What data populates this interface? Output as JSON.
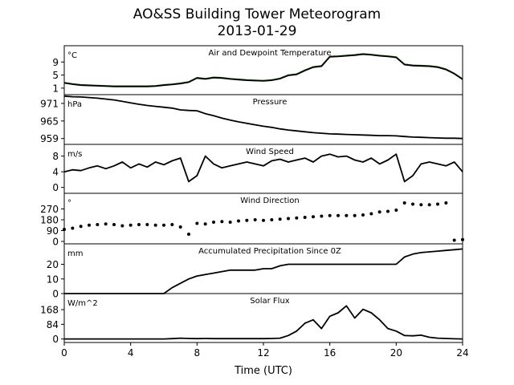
{
  "title": "AO&SS Building Tower Meteorogram",
  "subtitle": "2013-01-29",
  "chart_data": {
    "type": "line",
    "xlabel": "Time (UTC)",
    "xlim": [
      0,
      24
    ],
    "xticks": [
      "0",
      "4",
      "8",
      "12",
      "16",
      "20",
      "24"
    ],
    "x": [
      0,
      0.5,
      1,
      1.5,
      2,
      2.5,
      3,
      3.5,
      4,
      4.5,
      5,
      5.5,
      6,
      6.5,
      7,
      7.5,
      8,
      8.5,
      9,
      9.5,
      10,
      10.5,
      11,
      11.5,
      12,
      12.5,
      13,
      13.5,
      14,
      14.5,
      15,
      15.5,
      16,
      16.5,
      17,
      17.5,
      18,
      18.5,
      19,
      19.5,
      20,
      20.5,
      21,
      21.5,
      22,
      22.5,
      23,
      23.5,
      24
    ],
    "panels": [
      {
        "id": "temperature",
        "title": "Air and Dewpoint Temperature",
        "unit": "°C",
        "ylim": [
          -1,
          14
        ],
        "yticks": [
          "1",
          "5",
          "9"
        ],
        "color": "#1a7a00",
        "series": [
          {
            "style": "line",
            "color": "#1a7a00",
            "values": [
              2.7,
              2.3,
              2.0,
              1.9,
              1.8,
              1.7,
              1.6,
              1.6,
              1.6,
              1.6,
              1.6,
              1.7,
              2.0,
              2.2,
              2.5,
              2.9,
              4.2,
              3.9,
              4.3,
              4.2,
              3.9,
              3.7,
              3.5,
              3.4,
              3.3,
              3.5,
              4.0,
              5.0,
              5.3,
              6.5,
              7.5,
              7.8,
              10.7,
              10.8,
              11.0,
              11.2,
              11.5,
              11.3,
              11.0,
              10.8,
              10.5,
              8.3,
              8.0,
              7.9,
              7.8,
              7.5,
              6.8,
              5.5,
              3.8
            ]
          },
          {
            "style": "line",
            "color": "#000000",
            "values": [
              2.6,
              2.2,
              1.9,
              1.8,
              1.7,
              1.6,
              1.5,
              1.5,
              1.5,
              1.5,
              1.5,
              1.6,
              1.9,
              2.1,
              2.4,
              2.8,
              4.1,
              3.8,
              4.2,
              4.1,
              3.8,
              3.6,
              3.4,
              3.3,
              3.2,
              3.4,
              3.9,
              4.9,
              5.2,
              6.4,
              7.4,
              7.7,
              10.6,
              10.7,
              10.9,
              11.1,
              11.4,
              11.2,
              10.9,
              10.7,
              10.4,
              8.2,
              7.9,
              7.8,
              7.7,
              7.4,
              6.7,
              5.4,
              3.7
            ]
          }
        ]
      },
      {
        "id": "pressure",
        "title": "Pressure",
        "unit": "hPa",
        "ylim": [
          957,
          974
        ],
        "yticks": [
          "959",
          "965",
          "971"
        ],
        "series": [
          {
            "style": "line",
            "color": "#000000",
            "values": [
              973.5,
              973.3,
              973.2,
              973.0,
              972.8,
              972.5,
              972.2,
              971.7,
              971.2,
              970.7,
              970.3,
              970.0,
              969.7,
              969.4,
              968.8,
              968.6,
              968.5,
              967.5,
              966.8,
              966.0,
              965.3,
              964.7,
              964.2,
              963.7,
              963.2,
              962.8,
              962.3,
              961.9,
              961.6,
              961.3,
              961.0,
              960.8,
              960.6,
              960.5,
              960.4,
              960.3,
              960.2,
              960.1,
              960.0,
              960.0,
              959.9,
              959.7,
              959.5,
              959.4,
              959.3,
              959.2,
              959.1,
              959.1,
              959.0
            ]
          }
        ]
      },
      {
        "id": "wind-speed",
        "title": "Wind Speed",
        "unit": "m/s",
        "ylim": [
          -1.5,
          11
        ],
        "yticks": [
          "0",
          "4",
          "8"
        ],
        "series": [
          {
            "style": "line",
            "color": "#000000",
            "values": [
              4.0,
              4.5,
              4.3,
              5.0,
              5.5,
              4.8,
              5.5,
              6.5,
              5.0,
              6.0,
              5.2,
              6.5,
              5.8,
              6.8,
              7.5,
              1.5,
              3.0,
              8.0,
              6.0,
              5.0,
              5.5,
              6.0,
              6.5,
              6.0,
              5.5,
              6.8,
              7.2,
              6.5,
              7.0,
              7.5,
              6.5,
              8.0,
              8.5,
              7.8,
              8.0,
              7.0,
              6.5,
              7.5,
              6.0,
              7.0,
              8.5,
              1.5,
              3.0,
              6.0,
              6.5,
              6.0,
              5.5,
              6.5,
              4.0
            ]
          }
        ]
      },
      {
        "id": "wind-direction",
        "title": "Wind Direction",
        "unit": "°",
        "ylim": [
          -20,
          400
        ],
        "yticks": [
          "0",
          "90",
          "180",
          "270"
        ],
        "series": [
          {
            "style": "dots",
            "color": "#000000",
            "values": [
              100,
              110,
              125,
              135,
              140,
              145,
              140,
              130,
              135,
              140,
              140,
              135,
              135,
              140,
              120,
              60,
              150,
              145,
              160,
              165,
              160,
              170,
              175,
              180,
              175,
              180,
              185,
              190,
              195,
              200,
              205,
              210,
              215,
              215,
              215,
              215,
              220,
              230,
              245,
              250,
              260,
              320,
              310,
              305,
              305,
              310,
              320,
              10,
              15
            ]
          }
        ]
      },
      {
        "id": "precipitation",
        "title": "Accumulated Precipitation Since 0Z",
        "unit": "mm",
        "ylim": [
          0,
          34
        ],
        "yticks": [
          "0",
          "10",
          "20"
        ],
        "series": [
          {
            "style": "line",
            "color": "#000000",
            "values": [
              0,
              0,
              0,
              0,
              0,
              0,
              0,
              0,
              0,
              0,
              0,
              0,
              0,
              4,
              7,
              10,
              12,
              13,
              14,
              15,
              16,
              16,
              16,
              16,
              17,
              17,
              19,
              20,
              20,
              20,
              20,
              20,
              20,
              20,
              20,
              20,
              20,
              20,
              20,
              20,
              20,
              25,
              27,
              28,
              28.5,
              29,
              29.5,
              30,
              30.5
            ]
          }
        ]
      },
      {
        "id": "solar-flux",
        "title": "Solar Flux",
        "unit": "W/m^2",
        "ylim": [
          -20,
          260
        ],
        "yticks": [
          "0",
          "84",
          "168"
        ],
        "series": [
          {
            "style": "line",
            "color": "#000000",
            "values": [
              0,
              0,
              0,
              0,
              0,
              0,
              0,
              0,
              0,
              0,
              0,
              0,
              0,
              2,
              5,
              3,
              2,
              3,
              2,
              2,
              2,
              2,
              2,
              2,
              2,
              3,
              5,
              20,
              45,
              90,
              110,
              60,
              130,
              150,
              190,
              120,
              170,
              150,
              110,
              60,
              45,
              20,
              18,
              22,
              10,
              5,
              3,
              1,
              0
            ]
          }
        ]
      }
    ]
  }
}
